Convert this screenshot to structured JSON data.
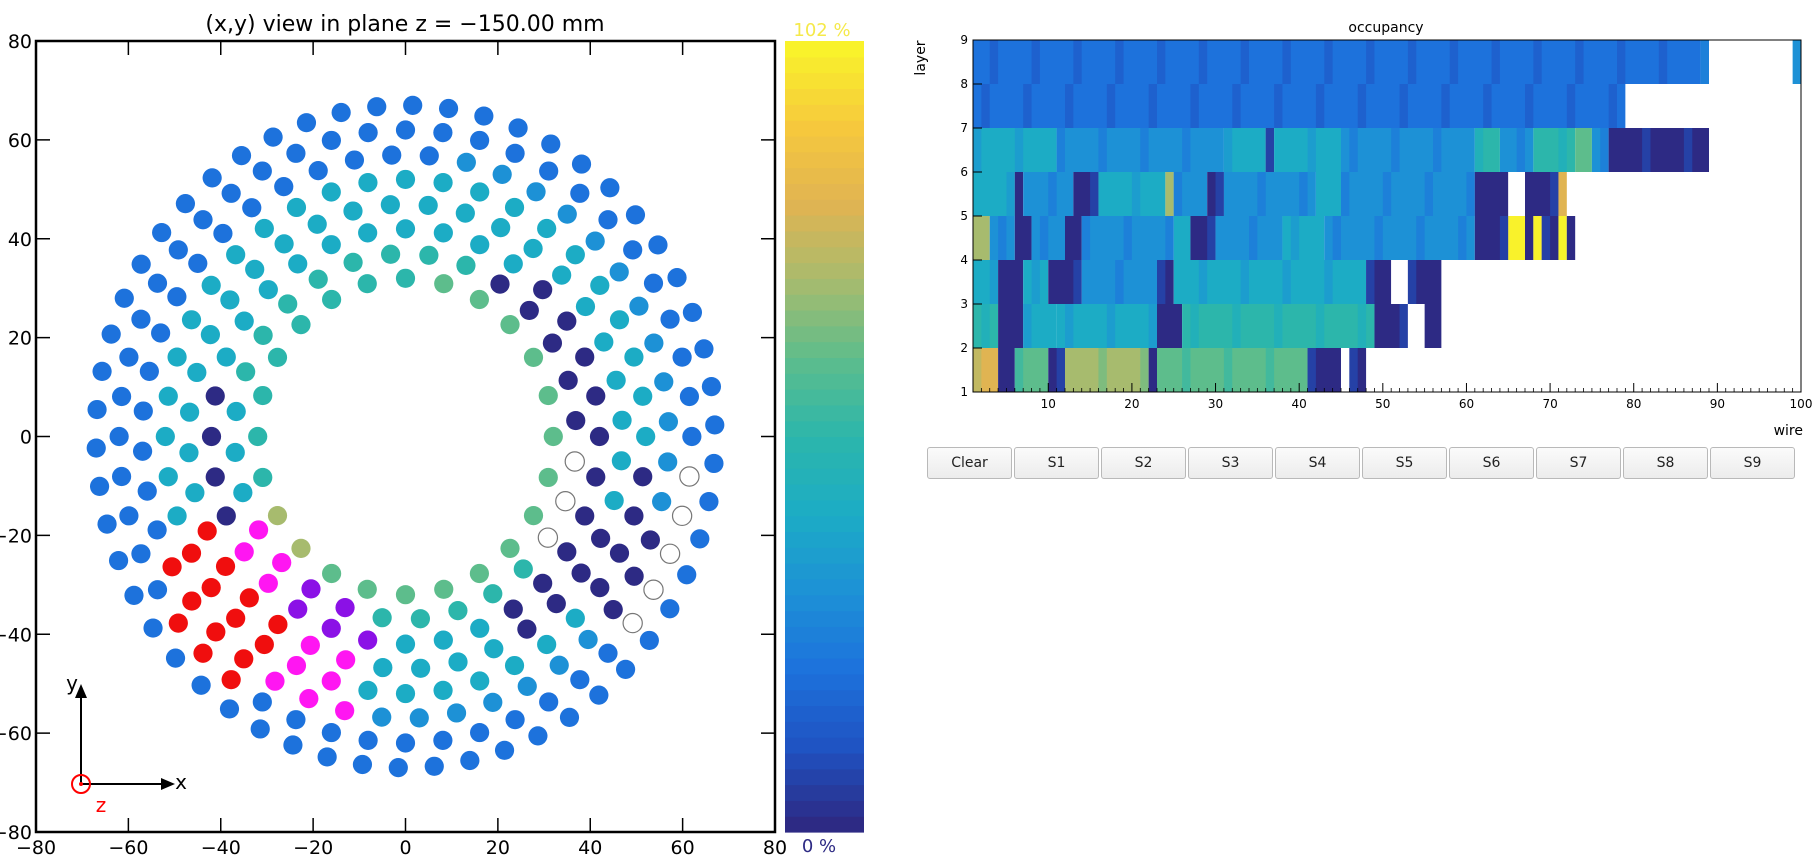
{
  "colors": {
    "palette": [
      "#2d2a84",
      "#1f53c2",
      "#1d72dc",
      "#1d91d6",
      "#1cacc5",
      "#2cb6ab",
      "#5dbd8c",
      "#a7bb6e",
      "#e0b452",
      "#f6c83d",
      "#f9f22b"
    ],
    "overflow_red": "#f00e0e",
    "overflow_magenta": "#ff16f2",
    "overflow_purple": "#8b11e6",
    "empty": "#ffffff",
    "axis_z": "#ff0000"
  },
  "left_panel": {
    "title": "(x,y) view in plane z = −150.00 mm",
    "x_ticks": [
      "−80",
      "−60",
      "−40",
      "−20",
      "0",
      "20",
      "40",
      "60",
      "80"
    ],
    "y_ticks": [
      "80",
      "60",
      "40",
      "20",
      "0",
      "−20",
      "−40",
      "−60",
      "−80"
    ],
    "colorbar_top_label": "102 %",
    "colorbar_bottom_label": "0 %",
    "axis_x_label": "x",
    "axis_y_label": "y",
    "axis_z_label": "z"
  },
  "right_panel": {
    "title": "occupancy",
    "xlabel": "wire",
    "ylabel": "layer",
    "x_ticks": [
      "10",
      "20",
      "30",
      "40",
      "50",
      "60",
      "70",
      "80",
      "90",
      "100"
    ],
    "y_ticks": [
      "1",
      "2",
      "3",
      "4",
      "5",
      "6",
      "7",
      "8",
      "9"
    ]
  },
  "buttons": [
    "Clear",
    "S1",
    "S2",
    "S3",
    "S4",
    "S5",
    "S6",
    "S7",
    "S8",
    "S9"
  ],
  "chart_data": [
    {
      "type": "scatter",
      "title": "(x,y) view in plane z = −150.00 mm",
      "xlim": [
        -80,
        80
      ],
      "ylim": [
        -80,
        80
      ],
      "color_scale": {
        "min_label": "0 %",
        "max_label": "102 %"
      },
      "rings": [
        {
          "radius": 32,
          "count": 24,
          "ccw_offset_deg": 0,
          "segments": [
            {
              "from": 0,
              "to": 90,
              "color": 6
            },
            {
              "from": 90,
              "to": 200,
              "color": 5
            },
            {
              "from": 200,
              "to": 230,
              "color": 7
            },
            {
              "from": 230,
              "to": 360,
              "color": 6
            }
          ]
        },
        {
          "radius": 37,
          "count": 28,
          "ccw_offset_deg": 5,
          "segments": [
            {
              "from": 0,
              "to": 60,
              "color": 0
            },
            {
              "from": 60,
              "to": 120,
              "color": 5
            },
            {
              "from": 120,
              "to": 170,
              "color": 5
            },
            {
              "from": 170,
              "to": 200,
              "color": 4
            },
            {
              "from": 200,
              "to": 225,
              "color": "magenta"
            },
            {
              "from": 225,
              "to": 255,
              "color": "purple"
            },
            {
              "from": 255,
              "to": 320,
              "color": 5
            },
            {
              "from": 320,
              "to": 360,
              "color": "empty"
            }
          ]
        },
        {
          "radius": 42,
          "count": 32,
          "ccw_offset_deg": 0,
          "segments": [
            {
              "from": 0,
              "to": 55,
              "color": 0
            },
            {
              "from": 55,
              "to": 110,
              "color": 4
            },
            {
              "from": 110,
              "to": 160,
              "color": 4
            },
            {
              "from": 160,
              "to": 205,
              "color": 0
            },
            {
              "from": 205,
              "to": 235,
              "color": "magenta"
            },
            {
              "from": 235,
              "to": 260,
              "color": "purple"
            },
            {
              "from": 260,
              "to": 300,
              "color": 4
            },
            {
              "from": 300,
              "to": 360,
              "color": 0
            }
          ]
        },
        {
          "radius": 47,
          "count": 36,
          "ccw_offset_deg": 4,
          "segments": [
            {
              "from": 0,
              "to": 40,
              "color": 4
            },
            {
              "from": 40,
              "to": 130,
              "color": 4
            },
            {
              "from": 130,
              "to": 200,
              "color": 4
            },
            {
              "from": 200,
              "to": 240,
              "color": "red"
            },
            {
              "from": 240,
              "to": 255,
              "color": "magenta"
            },
            {
              "from": 255,
              "to": 300,
              "color": 4
            },
            {
              "from": 300,
              "to": 340,
              "color": 0
            },
            {
              "from": 340,
              "to": 360,
              "color": 4
            }
          ]
        },
        {
          "radius": 52,
          "count": 40,
          "ccw_offset_deg": 0,
          "segments": [
            {
              "from": 0,
              "to": 35,
              "color": 4
            },
            {
              "from": 35,
              "to": 145,
              "color": 4
            },
            {
              "from": 145,
              "to": 200,
              "color": 4
            },
            {
              "from": 200,
              "to": 235,
              "color": "red"
            },
            {
              "from": 235,
              "to": 260,
              "color": "magenta"
            },
            {
              "from": 260,
              "to": 320,
              "color": 4
            },
            {
              "from": 320,
              "to": 360,
              "color": 0
            }
          ]
        },
        {
          "radius": 57,
          "count": 44,
          "ccw_offset_deg": 3,
          "segments": [
            {
              "from": 0,
              "to": 80,
              "color": 3
            },
            {
              "from": 80,
              "to": 170,
              "color": 2
            },
            {
              "from": 170,
              "to": 205,
              "color": 2
            },
            {
              "from": 205,
              "to": 235,
              "color": "red"
            },
            {
              "from": 235,
              "to": 262,
              "color": "magenta"
            },
            {
              "from": 262,
              "to": 320,
              "color": 3
            },
            {
              "from": 320,
              "to": 345,
              "color": 0
            },
            {
              "from": 345,
              "to": 360,
              "color": 3
            }
          ]
        },
        {
          "radius": 62,
          "count": 48,
          "ccw_offset_deg": 0,
          "segments": [
            {
              "from": 0,
              "to": 200,
              "color": 2
            },
            {
              "from": 200,
              "to": 215,
              "color": 2
            },
            {
              "from": 215,
              "to": 240,
              "color": "red"
            },
            {
              "from": 240,
              "to": 322,
              "color": 2
            },
            {
              "from": 322,
              "to": 360,
              "color": "empty"
            }
          ]
        },
        {
          "radius": 67,
          "count": 54,
          "ccw_offset_deg": 2,
          "segments": [
            {
              "from": 0,
              "to": 360,
              "color": 2
            }
          ]
        }
      ]
    },
    {
      "type": "heatmap",
      "title": "occupancy",
      "xlabel": "wire",
      "ylabel": "layer",
      "xlim": [
        1,
        100
      ],
      "ylim": [
        1,
        9
      ],
      "layers": [
        {
          "layer": 1,
          "wire_range": [
            1,
            48
          ],
          "runs": [
            [
              1,
              3,
              8
            ],
            [
              4,
              5,
              0
            ],
            [
              6,
              9,
              6
            ],
            [
              10,
              11,
              0
            ],
            [
              12,
              21,
              7
            ],
            [
              22,
              22,
              0
            ],
            [
              23,
              40,
              6
            ],
            [
              41,
              44,
              0
            ],
            [
              45,
              45,
              "empty"
            ],
            [
              46,
              47,
              0
            ]
          ]
        },
        {
          "layer": 2,
          "wire_range": [
            1,
            57
          ],
          "runs": [
            [
              1,
              3,
              5
            ],
            [
              4,
              6,
              0
            ],
            [
              7,
              10,
              4
            ],
            [
              11,
              22,
              4
            ],
            [
              23,
              25,
              0
            ],
            [
              26,
              48,
              5
            ],
            [
              49,
              52,
              0
            ],
            [
              53,
              54,
              "empty"
            ],
            [
              55,
              56,
              0
            ]
          ]
        },
        {
          "layer": 3,
          "wire_range": [
            1,
            57
          ],
          "runs": [
            [
              1,
              3,
              4
            ],
            [
              4,
              6,
              0
            ],
            [
              7,
              9,
              4
            ],
            [
              10,
              13,
              0
            ],
            [
              14,
              22,
              3
            ],
            [
              23,
              24,
              0
            ],
            [
              25,
              47,
              4
            ],
            [
              48,
              50,
              0
            ],
            [
              51,
              52,
              "empty"
            ],
            [
              53,
              56,
              0
            ]
          ]
        },
        {
          "layer": 4,
          "wire_range": [
            1,
            73
          ],
          "runs": [
            [
              1,
              2,
              7
            ],
            [
              3,
              5,
              3
            ],
            [
              6,
              7,
              0
            ],
            [
              8,
              11,
              3
            ],
            [
              12,
              13,
              0
            ],
            [
              14,
              24,
              3
            ],
            [
              25,
              26,
              4
            ],
            [
              27,
              29,
              0
            ],
            [
              30,
              37,
              3
            ],
            [
              38,
              42,
              4
            ],
            [
              43,
              60,
              3
            ],
            [
              61,
              64,
              0
            ],
            [
              65,
              66,
              10
            ],
            [
              67,
              67,
              0
            ],
            [
              68,
              68,
              10
            ],
            [
              69,
              70,
              0
            ],
            [
              71,
              71,
              10
            ],
            [
              72,
              72,
              0
            ]
          ]
        },
        {
          "layer": 5,
          "wire_range": [
            1,
            73
          ],
          "runs": [
            [
              1,
              5,
              4
            ],
            [
              6,
              6,
              0
            ],
            [
              7,
              12,
              3
            ],
            [
              13,
              15,
              0
            ],
            [
              16,
              23,
              4
            ],
            [
              24,
              24,
              7
            ],
            [
              25,
              28,
              3
            ],
            [
              29,
              30,
              0
            ],
            [
              31,
              41,
              3
            ],
            [
              42,
              44,
              4
            ],
            [
              45,
              60,
              3
            ],
            [
              61,
              64,
              0
            ],
            [
              65,
              66,
              "empty"
            ],
            [
              67,
              70,
              0
            ],
            [
              71,
              71,
              8
            ]
          ]
        },
        {
          "layer": 6,
          "wire_range": [
            1,
            89
          ],
          "runs": [
            [
              1,
              10,
              4
            ],
            [
              11,
              22,
              3
            ],
            [
              23,
              30,
              3
            ],
            [
              31,
              35,
              4
            ],
            [
              36,
              36,
              0
            ],
            [
              37,
              44,
              4
            ],
            [
              45,
              60,
              3
            ],
            [
              61,
              63,
              5
            ],
            [
              64,
              67,
              3
            ],
            [
              68,
              72,
              5
            ],
            [
              73,
              74,
              6
            ],
            [
              75,
              76,
              3
            ],
            [
              77,
              88,
              0
            ]
          ]
        },
        {
          "layer": 7,
          "wire_range": [
            1,
            79
          ],
          "runs": [
            [
              1,
              78,
              2
            ]
          ]
        },
        {
          "layer": 8,
          "wire_range": [
            1,
            99
          ],
          "runs": [
            [
              1,
              87,
              2
            ],
            [
              88,
              88,
              3
            ],
            [
              89,
              98,
              "empty"
            ],
            [
              99,
              99,
              3
            ]
          ]
        }
      ]
    }
  ]
}
